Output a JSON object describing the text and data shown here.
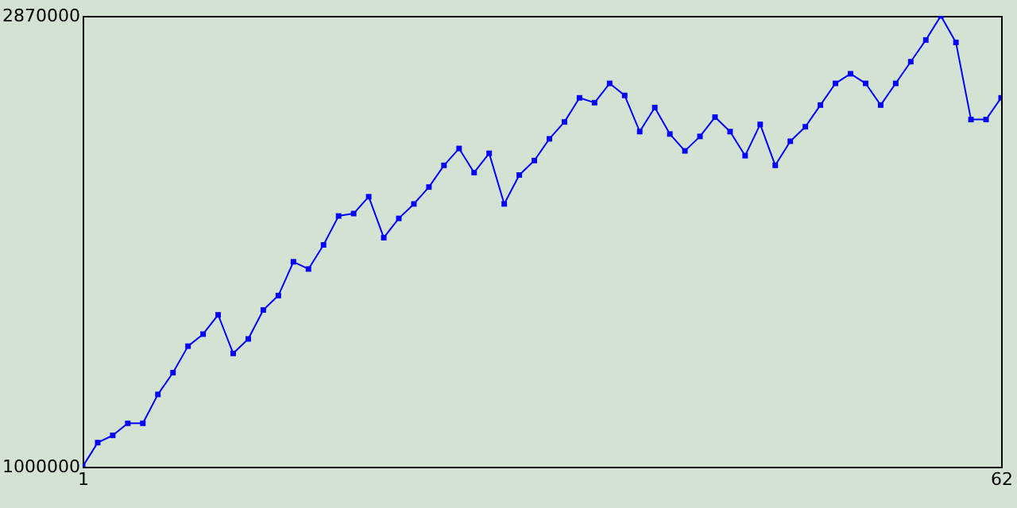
{
  "chart_data": {
    "type": "line",
    "marker": "square",
    "grid": false,
    "x": [
      1,
      2,
      3,
      4,
      5,
      6,
      7,
      8,
      9,
      10,
      11,
      12,
      13,
      14,
      15,
      16,
      17,
      18,
      19,
      20,
      21,
      22,
      23,
      24,
      25,
      26,
      27,
      28,
      29,
      30,
      31,
      32,
      33,
      34,
      35,
      36,
      37,
      38,
      39,
      40,
      41,
      42,
      43,
      44,
      45,
      46,
      47,
      48,
      49,
      50,
      51,
      52,
      53,
      54,
      55,
      56,
      57,
      58,
      59,
      60,
      61,
      62
    ],
    "series": [
      {
        "color": "#0000ff",
        "values": [
          1000000,
          1100000,
          1130000,
          1180000,
          1180000,
          1300000,
          1390000,
          1500000,
          1550000,
          1630000,
          1470000,
          1530000,
          1650000,
          1710000,
          1850000,
          1820000,
          1920000,
          2040000,
          2050000,
          2120000,
          1950000,
          2030000,
          2090000,
          2160000,
          2250000,
          2320000,
          2220000,
          2300000,
          2090000,
          2210000,
          2270000,
          2360000,
          2430000,
          2530000,
          2510000,
          2590000,
          2540000,
          2390000,
          2490000,
          2380000,
          2310000,
          2370000,
          2450000,
          2390000,
          2290000,
          2420000,
          2250000,
          2350000,
          2410000,
          2500000,
          2590000,
          2630000,
          2590000,
          2500000,
          2590000,
          2680000,
          2770000,
          2870000,
          2760000,
          2440000,
          2440000,
          2530000
        ]
      }
    ],
    "xlim": [
      1,
      62
    ],
    "xticks": [
      1,
      62
    ],
    "ylim": [
      1000000,
      2870000
    ],
    "yticks": [
      1000000,
      2870000
    ]
  }
}
